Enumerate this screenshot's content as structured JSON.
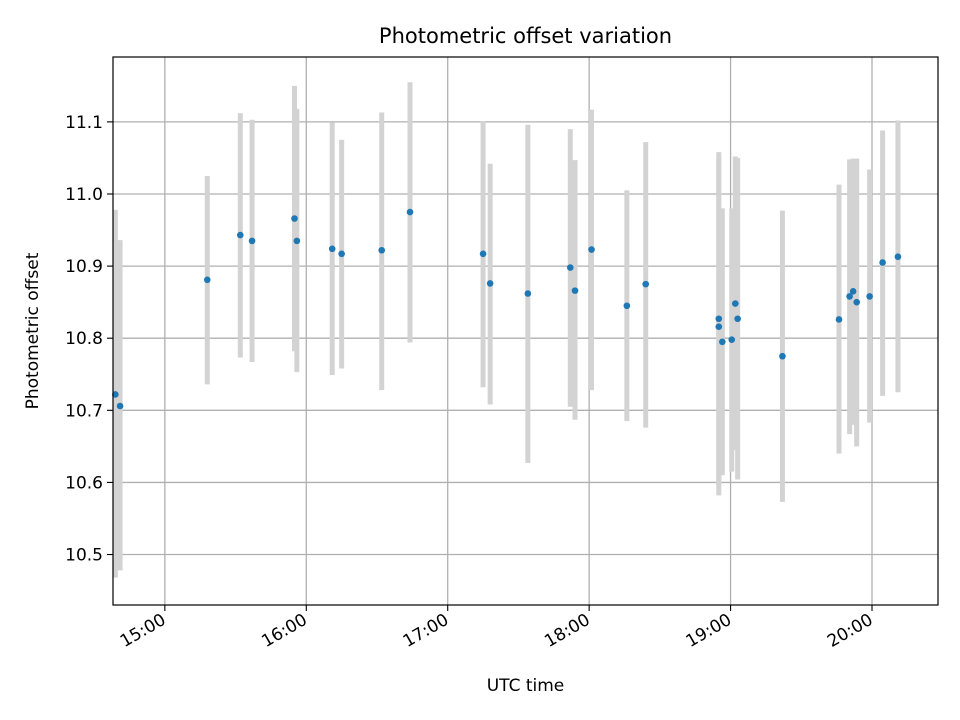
{
  "chart_data": {
    "type": "scatter",
    "title": "Photometric offset variation",
    "xlabel": "UTC time",
    "ylabel": "Photometric offset",
    "grid": true,
    "legend": "none",
    "xlim": [
      "14:38",
      "20:28"
    ],
    "ylim": [
      10.43,
      11.19
    ],
    "x_ticks": [
      "15:00",
      "16:00",
      "17:00",
      "18:00",
      "19:00",
      "20:00"
    ],
    "y_ticks": [
      "10.5",
      "10.6",
      "10.7",
      "10.8",
      "10.9",
      "11.0",
      "11.1"
    ],
    "colors": {
      "points": "#1f77b4",
      "error_bars": "#d3d3d3",
      "grid": "#b0b0b0"
    },
    "series": [
      {
        "points": [
          {
            "x": "14:39:00",
            "y": 10.722,
            "ylow": 10.468,
            "yhigh": 10.978
          },
          {
            "x": "14:41:00",
            "y": 10.706,
            "ylow": 10.478,
            "yhigh": 10.936
          },
          {
            "x": "15:18:00",
            "y": 10.881,
            "ylow": 10.736,
            "yhigh": 11.025
          },
          {
            "x": "15:32:00",
            "y": 10.943,
            "ylow": 10.773,
            "yhigh": 11.112
          },
          {
            "x": "15:37:00",
            "y": 10.935,
            "ylow": 10.767,
            "yhigh": 11.103
          },
          {
            "x": "15:55:00",
            "y": 10.966,
            "ylow": 10.782,
            "yhigh": 11.15
          },
          {
            "x": "15:56:00",
            "y": 10.935,
            "ylow": 10.753,
            "yhigh": 11.118
          },
          {
            "x": "16:11:00",
            "y": 10.924,
            "ylow": 10.749,
            "yhigh": 11.099
          },
          {
            "x": "16:15:00",
            "y": 10.917,
            "ylow": 10.758,
            "yhigh": 11.075
          },
          {
            "x": "16:32:00",
            "y": 10.922,
            "ylow": 10.728,
            "yhigh": 11.113
          },
          {
            "x": "16:44:00",
            "y": 10.975,
            "ylow": 10.794,
            "yhigh": 11.155
          },
          {
            "x": "17:15:00",
            "y": 10.917,
            "ylow": 10.732,
            "yhigh": 11.101
          },
          {
            "x": "17:18:00",
            "y": 10.876,
            "ylow": 10.708,
            "yhigh": 11.042
          },
          {
            "x": "17:34:00",
            "y": 10.862,
            "ylow": 10.627,
            "yhigh": 11.096
          },
          {
            "x": "17:52:00",
            "y": 10.898,
            "ylow": 10.705,
            "yhigh": 11.09
          },
          {
            "x": "17:54:00",
            "y": 10.866,
            "ylow": 10.687,
            "yhigh": 11.047
          },
          {
            "x": "18:01:00",
            "y": 10.923,
            "ylow": 10.728,
            "yhigh": 11.117
          },
          {
            "x": "18:16:00",
            "y": 10.845,
            "ylow": 10.685,
            "yhigh": 11.005
          },
          {
            "x": "18:24:00",
            "y": 10.875,
            "ylow": 10.676,
            "yhigh": 11.072
          },
          {
            "x": "18:55:00",
            "y": 10.827,
            "ylow": 10.596,
            "yhigh": 11.058
          },
          {
            "x": "18:55:00",
            "y": 10.816,
            "ylow": 10.582,
            "yhigh": 11.05
          },
          {
            "x": "18:56:30",
            "y": 10.795,
            "ylow": 10.61,
            "yhigh": 10.98
          },
          {
            "x": "19:00:30",
            "y": 10.798,
            "ylow": 10.615,
            "yhigh": 10.98
          },
          {
            "x": "19:02:00",
            "y": 10.848,
            "ylow": 10.645,
            "yhigh": 11.052
          },
          {
            "x": "19:03:00",
            "y": 10.827,
            "ylow": 10.604,
            "yhigh": 11.05
          },
          {
            "x": "19:22:00",
            "y": 10.775,
            "ylow": 10.573,
            "yhigh": 10.977
          },
          {
            "x": "19:46:00",
            "y": 10.826,
            "ylow": 10.64,
            "yhigh": 11.013
          },
          {
            "x": "19:50:30",
            "y": 10.858,
            "ylow": 10.667,
            "yhigh": 11.048
          },
          {
            "x": "19:52:00",
            "y": 10.865,
            "ylow": 10.68,
            "yhigh": 11.049
          },
          {
            "x": "19:53:30",
            "y": 10.85,
            "ylow": 10.65,
            "yhigh": 11.049
          },
          {
            "x": "19:59:00",
            "y": 10.858,
            "ylow": 10.683,
            "yhigh": 11.034
          },
          {
            "x": "20:04:30",
            "y": 10.905,
            "ylow": 10.72,
            "yhigh": 11.088
          },
          {
            "x": "20:11:00",
            "y": 10.913,
            "ylow": 10.725,
            "yhigh": 11.102
          }
        ]
      }
    ]
  }
}
